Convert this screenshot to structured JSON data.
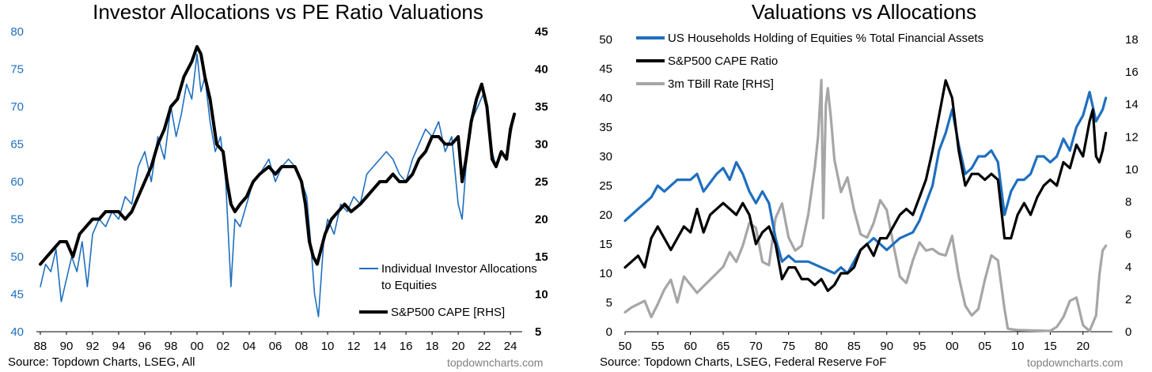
{
  "charts": [
    {
      "title": "Investor Allocations vs PE Ratio Valuations",
      "source": "Source: Topdown Charts, LSEG, All",
      "brand": "topdowncharts.com",
      "colors": {
        "blue": "#1f6fbf",
        "black": "#000000",
        "axis_left_text": "#1f6fbf"
      },
      "legend": [
        {
          "label": "Individual Investor Allocations to Equities",
          "color": "#1f6fbf"
        },
        {
          "label": "S&P500 CAPE [RHS]",
          "color": "#000000"
        }
      ]
    },
    {
      "title": "Valuations vs Allocations",
      "source": "Source: Topdown Charts, LSEG, Federal Reserve FoF",
      "brand": "topdowncharts.com",
      "colors": {
        "blue": "#1f6fbf",
        "black": "#000000",
        "grey": "#a6a6a6"
      },
      "legend": [
        {
          "label": "US Households Holding of Equities % Total Financial Assets",
          "color": "#1f6fbf"
        },
        {
          "label": "S&P500 CAPE Ratio",
          "color": "#000000"
        },
        {
          "label": "3m TBill Rate [RHS]",
          "color": "#a6a6a6"
        }
      ]
    }
  ],
  "chart_data": [
    {
      "type": "line",
      "title": "Investor Allocations vs PE Ratio Valuations",
      "x_ticks": [
        "88",
        "90",
        "92",
        "94",
        "96",
        "98",
        "00",
        "02",
        "04",
        "06",
        "08",
        "10",
        "12",
        "14",
        "16",
        "18",
        "20",
        "22",
        "24"
      ],
      "x_range": [
        1987.7,
        2024.9
      ],
      "y_left": {
        "range": [
          40,
          80
        ],
        "ticks": [
          "40",
          "45",
          "50",
          "55",
          "60",
          "65",
          "70",
          "75",
          "80"
        ]
      },
      "y_right": {
        "range": [
          5,
          45
        ],
        "ticks": [
          "5",
          "10",
          "15",
          "20",
          "25",
          "30",
          "35",
          "40",
          "45"
        ]
      },
      "grid": false,
      "legend_position": "bottom-right",
      "series": [
        {
          "name": "Individual Investor Allocations to Equities",
          "axis": "left",
          "x": [
            1988.0,
            1988.4,
            1988.8,
            1989.2,
            1989.6,
            1990.0,
            1990.4,
            1990.8,
            1991.2,
            1991.6,
            1992.0,
            1992.5,
            1993.0,
            1993.5,
            1994.0,
            1994.5,
            1995.0,
            1995.5,
            1996.0,
            1996.5,
            1997.0,
            1997.5,
            1998.0,
            1998.4,
            1998.8,
            1999.2,
            1999.6,
            2000.0,
            2000.3,
            2000.6,
            2001.0,
            2001.4,
            2001.8,
            2002.2,
            2002.6,
            2002.9,
            2003.3,
            2003.8,
            2004.3,
            2004.8,
            2005.5,
            2006.0,
            2006.5,
            2007.0,
            2007.5,
            2008.0,
            2008.4,
            2008.7,
            2009.0,
            2009.3,
            2009.7,
            2010.0,
            2010.5,
            2011.0,
            2011.5,
            2012.0,
            2012.5,
            2013.0,
            2013.5,
            2014.0,
            2014.5,
            2015.0,
            2015.5,
            2016.0,
            2016.5,
            2017.0,
            2017.5,
            2018.0,
            2018.5,
            2019.0,
            2019.5,
            2020.0,
            2020.3,
            2020.6,
            2021.0,
            2021.5,
            2022.0,
            2022.3,
            2022.6,
            2022.9,
            2023.3,
            2023.7,
            2024.0,
            2024.3
          ],
          "values": [
            46,
            49,
            48,
            51,
            44,
            47,
            50,
            48,
            52,
            46,
            53,
            55,
            54,
            56,
            55,
            58,
            57,
            62,
            64,
            60,
            66,
            63,
            70,
            66,
            69,
            73,
            71,
            77,
            72,
            74,
            68,
            64,
            66,
            60,
            46,
            55,
            54,
            57,
            60,
            61,
            63,
            60,
            62,
            63,
            62,
            60,
            58,
            52,
            45,
            42,
            52,
            55,
            53,
            57,
            56,
            58,
            57,
            61,
            62,
            63,
            64,
            63,
            61,
            60,
            63,
            65,
            67,
            66,
            68,
            64,
            66,
            57,
            55,
            62,
            68,
            70,
            72,
            68,
            64,
            62,
            64,
            63,
            66,
            69
          ]
        },
        {
          "name": "S&P500 CAPE [RHS]",
          "axis": "right",
          "x": [
            1988.0,
            1988.5,
            1989.0,
            1989.5,
            1990.0,
            1990.5,
            1991.0,
            1991.5,
            1992.0,
            1992.5,
            1993.0,
            1993.5,
            1994.0,
            1994.5,
            1995.0,
            1995.5,
            1996.0,
            1996.5,
            1997.0,
            1997.5,
            1998.0,
            1998.5,
            1999.0,
            1999.3,
            1999.6,
            2000.0,
            2000.3,
            2000.6,
            2001.0,
            2001.5,
            2002.0,
            2002.3,
            2002.6,
            2002.9,
            2003.3,
            2003.8,
            2004.3,
            2004.8,
            2005.5,
            2006.0,
            2006.5,
            2007.0,
            2007.5,
            2008.0,
            2008.3,
            2008.6,
            2008.9,
            2009.2,
            2009.5,
            2009.8,
            2010.3,
            2010.8,
            2011.3,
            2011.8,
            2012.5,
            2013.0,
            2013.5,
            2014.0,
            2014.5,
            2015.0,
            2015.5,
            2016.0,
            2016.5,
            2017.0,
            2017.5,
            2018.0,
            2018.5,
            2019.0,
            2019.5,
            2020.0,
            2020.3,
            2020.6,
            2021.0,
            2021.4,
            2021.8,
            2022.2,
            2022.6,
            2022.9,
            2023.3,
            2023.7,
            2024.0,
            2024.3
          ],
          "values": [
            14,
            15,
            16,
            17,
            17,
            15,
            18,
            19,
            20,
            20,
            21,
            21,
            21,
            20,
            21,
            23,
            25,
            27,
            30,
            32,
            35,
            36,
            39,
            40,
            41,
            43,
            42,
            39,
            36,
            30,
            29,
            25,
            22,
            21,
            22,
            23,
            25,
            26,
            27,
            26,
            27,
            27,
            27,
            25,
            22,
            17,
            15,
            14,
            16,
            18,
            20,
            21,
            22,
            21,
            22,
            23,
            24,
            25,
            25,
            26,
            25,
            25,
            26,
            28,
            29,
            31,
            31,
            30,
            30,
            31,
            25,
            28,
            33,
            36,
            38,
            35,
            28,
            27,
            29,
            28,
            32,
            34
          ]
        }
      ]
    },
    {
      "type": "line",
      "title": "Valuations vs Allocations",
      "x_ticks": [
        "50",
        "55",
        "60",
        "65",
        "70",
        "75",
        "80",
        "85",
        "90",
        "95",
        "00",
        "05",
        "10",
        "15",
        "20"
      ],
      "x_range": [
        1950,
        2024.5
      ],
      "y_left": {
        "range": [
          0,
          50
        ],
        "ticks": [
          "0",
          "5",
          "10",
          "15",
          "20",
          "25",
          "30",
          "35",
          "40",
          "45",
          "50"
        ]
      },
      "y_right": {
        "range": [
          0,
          18
        ],
        "ticks": [
          "0",
          "2",
          "4",
          "6",
          "8",
          "10",
          "12",
          "14",
          "16",
          "18"
        ]
      },
      "grid": false,
      "legend_position": "top-left",
      "series": [
        {
          "name": "US Households Holding of Equities % Total Financial Assets",
          "axis": "left",
          "x": [
            1950,
            1952,
            1954,
            1955,
            1956,
            1958,
            1960,
            1961,
            1962,
            1964,
            1965,
            1966,
            1967,
            1968,
            1969,
            1970,
            1971,
            1972,
            1973,
            1974,
            1975,
            1976,
            1978,
            1980,
            1982,
            1983,
            1984,
            1985,
            1986,
            1988,
            1990,
            1992,
            1994,
            1995,
            1996,
            1997,
            1998,
            1999,
            2000,
            2001,
            2002,
            2003,
            2004,
            2005,
            2006,
            2007,
            2008,
            2009,
            2010,
            2011,
            2012,
            2013,
            2014,
            2015,
            2016,
            2017,
            2018,
            2019,
            2020,
            2021,
            2022,
            2023,
            2023.5
          ],
          "values": [
            19,
            21,
            23,
            25,
            24,
            26,
            26,
            27,
            24,
            27,
            28,
            26,
            29,
            27,
            24,
            22,
            24,
            22,
            16,
            12,
            13,
            12,
            12,
            11,
            10,
            11,
            10,
            12,
            14,
            16,
            14,
            16,
            17,
            19,
            22,
            25,
            31,
            34,
            38,
            32,
            27,
            28,
            30,
            30,
            31,
            29,
            20,
            24,
            26,
            26,
            27,
            30,
            30,
            29,
            30,
            33,
            31,
            35,
            37,
            41,
            36,
            38,
            40
          ]
        },
        {
          "name": "S&P500 CAPE Ratio",
          "axis": "left",
          "x": [
            1950,
            1951,
            1952,
            1953,
            1954,
            1955,
            1956,
            1957,
            1958,
            1959,
            1960,
            1961,
            1962,
            1963,
            1964,
            1965,
            1966,
            1967,
            1968,
            1969,
            1970,
            1971,
            1972,
            1973,
            1974,
            1975,
            1976,
            1977,
            1978,
            1979,
            1980,
            1981,
            1982,
            1983,
            1984,
            1985,
            1986,
            1987,
            1988,
            1989,
            1990,
            1991,
            1992,
            1993,
            1994,
            1995,
            1996,
            1997,
            1998,
            1999,
            2000,
            2001,
            2002,
            2003,
            2004,
            2005,
            2006,
            2007,
            2008,
            2009,
            2010,
            2011,
            2012,
            2013,
            2014,
            2015,
            2016,
            2017,
            2018,
            2019,
            2020,
            2021,
            2021.5,
            2022,
            2022.5,
            2023,
            2023.5
          ],
          "values": [
            11,
            12,
            13,
            11,
            16,
            18,
            16,
            14,
            16,
            18,
            17,
            21,
            17,
            20,
            21,
            22,
            21,
            20,
            22,
            20,
            15,
            17,
            18,
            15,
            9,
            11,
            11,
            9,
            9,
            8,
            9,
            7,
            8,
            10,
            10,
            11,
            14,
            15,
            13,
            16,
            16,
            18,
            20,
            21,
            20,
            23,
            26,
            31,
            37,
            43,
            40,
            31,
            25,
            27,
            27,
            26,
            27,
            26,
            16,
            16,
            20,
            22,
            20,
            23,
            25,
            26,
            25,
            29,
            28,
            32,
            30,
            36,
            38,
            30,
            29,
            31,
            34
          ]
        },
        {
          "name": "3m TBill Rate [RHS]",
          "axis": "right",
          "x": [
            1950,
            1951,
            1952,
            1953,
            1954,
            1955,
            1956,
            1957,
            1958,
            1959,
            1960,
            1961,
            1962,
            1963,
            1964,
            1965,
            1966,
            1967,
            1968,
            1969,
            1970,
            1971,
            1972,
            1973,
            1974,
            1975,
            1976,
            1977,
            1978,
            1979,
            1979.5,
            1980,
            1980.3,
            1980.7,
            1981,
            1981.5,
            1982,
            1983,
            1984,
            1985,
            1986,
            1987,
            1988,
            1989,
            1990,
            1991,
            1992,
            1993,
            1994,
            1995,
            1996,
            1997,
            1998,
            1999,
            2000,
            2001,
            2002,
            2003,
            2004,
            2005,
            2006,
            2007,
            2008,
            2008.5,
            2009,
            2010,
            2012,
            2015,
            2016,
            2017,
            2018,
            2019,
            2020,
            2021,
            2022,
            2022.5,
            2023,
            2023.5
          ],
          "values": [
            1.2,
            1.5,
            1.7,
            1.9,
            0.9,
            1.7,
            2.6,
            3.2,
            1.8,
            3.4,
            2.9,
            2.4,
            2.8,
            3.2,
            3.6,
            4.0,
            4.9,
            4.3,
            5.3,
            6.7,
            6.4,
            4.3,
            4.1,
            7.0,
            7.9,
            5.8,
            5.0,
            5.3,
            7.2,
            10.1,
            12.0,
            15.5,
            7.0,
            14.0,
            15.0,
            13.0,
            10.6,
            8.6,
            9.5,
            7.5,
            6.0,
            5.8,
            6.7,
            8.1,
            7.5,
            5.4,
            3.4,
            3.0,
            4.4,
            5.5,
            5.0,
            5.1,
            4.8,
            4.7,
            5.9,
            3.4,
            1.6,
            1.0,
            1.4,
            3.2,
            4.7,
            4.4,
            1.4,
            0.2,
            0.15,
            0.1,
            0.08,
            0.05,
            0.3,
            0.9,
            1.9,
            2.1,
            0.4,
            0.05,
            1.0,
            3.5,
            5.0,
            5.3
          ]
        }
      ]
    }
  ]
}
